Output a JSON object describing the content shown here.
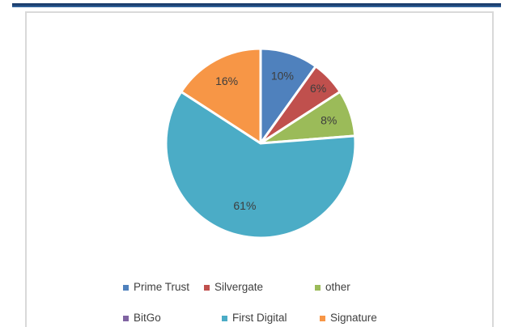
{
  "chart_data": {
    "type": "pie",
    "title": "",
    "categories": [
      "Prime Trust",
      "Silvergate",
      "other",
      "BitGo",
      "First Digital",
      "Signature"
    ],
    "values": [
      10,
      6,
      8,
      0,
      61,
      16
    ],
    "data_labels": [
      "10%",
      "6%",
      "8%",
      "",
      "61%",
      "16%"
    ],
    "colors": [
      "#4f81bd",
      "#c0504d",
      "#9bbb59",
      "#8064a2",
      "#4bacc6",
      "#f79646"
    ],
    "legend_position": "bottom",
    "legend_rows": [
      [
        "Prime Trust",
        "Silvergate",
        "other"
      ],
      [
        "BitGo",
        "First Digital",
        "Signature"
      ]
    ],
    "label_color": "#3d3d3d",
    "slice_border_color": "#ffffff"
  },
  "decor": {
    "top_rule_color_dark": "#1c3e6e",
    "top_rule_color_light": "#3a72ad",
    "frame_border_color": "#d9d9d9"
  }
}
